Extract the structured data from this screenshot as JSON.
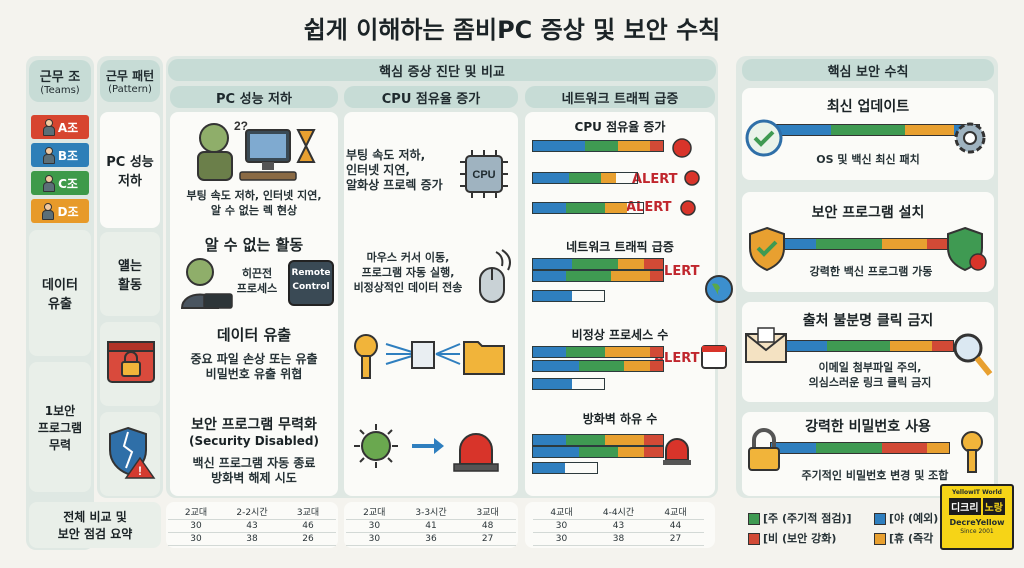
{
  "title": "쉽게 이해하는 좀비PC 증상 및 보안 수칙",
  "left_header": {
    "teams_label": "근무 조",
    "teams_sub": "(Teams)",
    "pattern_label": "근무 패턴",
    "pattern_sub": "(Pattern)"
  },
  "teams": [
    {
      "label": "A조",
      "color": "#d7452f"
    },
    {
      "label": "B조",
      "color": "#2e7fb8"
    },
    {
      "label": "C조",
      "color": "#3e9a4a"
    },
    {
      "label": "D조",
      "color": "#e79a2a"
    }
  ],
  "row_labels": {
    "r1": "PC 성능\n저하",
    "r2_left": "데이터\n유출",
    "r2_pattern": "얠는\n활동",
    "r3_left": "1보안\n프로그램\n무력",
    "summary": "전체 비교 및\n보안 점검 요약"
  },
  "diag_header": "핵심 증상 진단 및 비교",
  "columns": [
    "PC 성능 저하",
    "CPU 점유율 증가",
    "네트워크 트래픽 급증"
  ],
  "symptoms": [
    {
      "title": "",
      "desc": "부팅 속도 저하, 인터넷 지연,\n알 수 없는 렉 현상",
      "icon_text": "2?"
    },
    {
      "title": "알 수 없는 활동",
      "desc": "",
      "tag": "히끈전\n프로세스",
      "remote": "Remote\nControl"
    },
    {
      "title": "데이터 유출",
      "desc": "중요 파일 손상 또는 유출\n비밀번호 유출 위협"
    },
    {
      "title": "보안 프로그램 무력화",
      "subtitle": "(Security Disabled)",
      "desc": "백신 프로그램 자동 종료\n방화벽 해제 시도"
    }
  ],
  "middle": [
    {
      "desc": "부팅 속도 저하,\n인터넷 지연,\n알화상 프로렉 증가",
      "chip": "CPU"
    },
    {
      "desc": "마우스 커서 이동,\n프로그램 자동 실행,\n비정상적인 데이터 전송"
    }
  ],
  "metrics": [
    {
      "title": "CPU 점유율 증가",
      "alerts": [
        "ALERT",
        "ALERT"
      ]
    },
    {
      "title": "네트워크 트래픽 급증",
      "alerts": [
        "ALERT"
      ]
    },
    {
      "title": "비정상 프로세스 수",
      "alerts": [
        "ALERT"
      ]
    },
    {
      "title": "방화벽 하유 수",
      "alerts": []
    }
  ],
  "bar_data": [
    {
      "group": "cpu",
      "bars": [
        [
          0.4,
          0.25,
          0.25,
          0.1
        ],
        [
          0.35,
          0.3,
          0.15,
          0.0
        ],
        [
          0.3,
          0.35,
          0.2,
          0.0
        ]
      ]
    },
    {
      "group": "net",
      "bars": [
        [
          0.3,
          0.35,
          0.2,
          0.15
        ],
        [
          0.25,
          0.35,
          0.3,
          0.1
        ],
        [
          0.55,
          0.0,
          0.0,
          0.0
        ]
      ]
    },
    {
      "group": "proc",
      "bars": [
        [
          0.25,
          0.3,
          0.35,
          0.1
        ],
        [
          0.35,
          0.35,
          0.2,
          0.1
        ],
        [
          0.55,
          0.0,
          0.0,
          0.0
        ]
      ]
    },
    {
      "group": "fw",
      "bars": [
        [
          0.25,
          0.3,
          0.3,
          0.15
        ],
        [
          0.35,
          0.3,
          0.2,
          0.15
        ],
        [
          0.5,
          0.0,
          0.0,
          0.0
        ]
      ]
    }
  ],
  "bar_colors": [
    "#2f7fbf",
    "#3f9a52",
    "#e8a030",
    "#d24a36"
  ],
  "rules_header": "핵심 보안 수칙",
  "rules": [
    {
      "title": "최신 업데이트",
      "desc": "OS 및 백신 최신 패치"
    },
    {
      "title": "보안 프로그램 설치",
      "desc": "강력한 백신 프로그램 가동"
    },
    {
      "title": "출처 불분명 클릭 금지",
      "desc": "이메일 첨부파일 주의,\n의심스러운 링크 클릭 금지"
    },
    {
      "title": "강력한 비밀번호 사용",
      "desc": "주기적인 비밀번호 변경 및 조합"
    }
  ],
  "summary_tables": [
    {
      "header": [
        "2교대",
        "2-2시간",
        "3교대"
      ],
      "rows": [
        [
          "30",
          "43",
          "46"
        ],
        [
          "30",
          "38",
          "26"
        ]
      ]
    },
    {
      "header": [
        "2교대",
        "3-3시간",
        "3교대"
      ],
      "rows": [
        [
          "30",
          "41",
          "48"
        ],
        [
          "30",
          "36",
          "27"
        ]
      ]
    },
    {
      "header": [
        "4교대",
        "4-4시간",
        "4교대"
      ],
      "rows": [
        [
          "30",
          "43",
          "44"
        ],
        [
          "30",
          "38",
          "27"
        ]
      ]
    }
  ],
  "legend": [
    {
      "label": "[주 (주기적 점검)]",
      "color": "#3f9a52"
    },
    {
      "label": "[야 (예외)",
      "color": "#2f7fbf"
    },
    {
      "label": "[비 (보안 강화)",
      "color": "#d24a36"
    },
    {
      "label": "[휴 (즉각",
      "color": "#e8a030"
    }
  ],
  "brand": {
    "top": "YellowIT World",
    "left": "디크리",
    "right": "노랑",
    "name": "DecreYellow",
    "since": "Since 2001"
  }
}
